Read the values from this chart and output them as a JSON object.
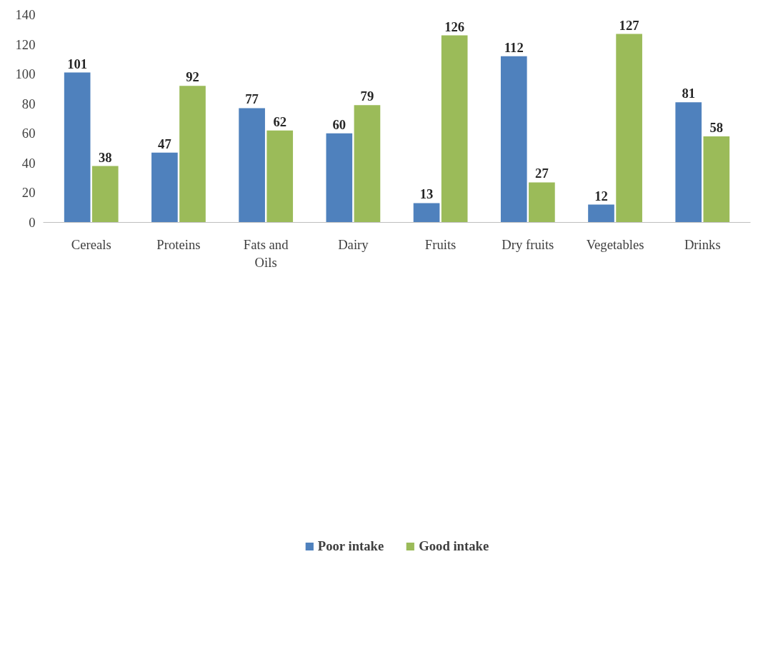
{
  "chart_data": {
    "type": "bar",
    "categories": [
      "Cereals",
      "Proteins",
      "Fats and Oils",
      "Dairy",
      "Fruits",
      "Dry fruits",
      "Vegetables",
      "Drinks"
    ],
    "series": [
      {
        "name": "Poor intake",
        "color": "#4f81bd",
        "values": [
          101,
          47,
          77,
          60,
          13,
          112,
          12,
          81
        ]
      },
      {
        "name": "Good intake",
        "color": "#9bbb59",
        "values": [
          38,
          92,
          62,
          79,
          126,
          27,
          127,
          58
        ]
      }
    ],
    "ylim": [
      0,
      140
    ],
    "yticks": [
      0,
      20,
      40,
      60,
      80,
      100,
      120,
      140
    ],
    "grid": false,
    "legend": "bottom",
    "data_labels": true
  }
}
